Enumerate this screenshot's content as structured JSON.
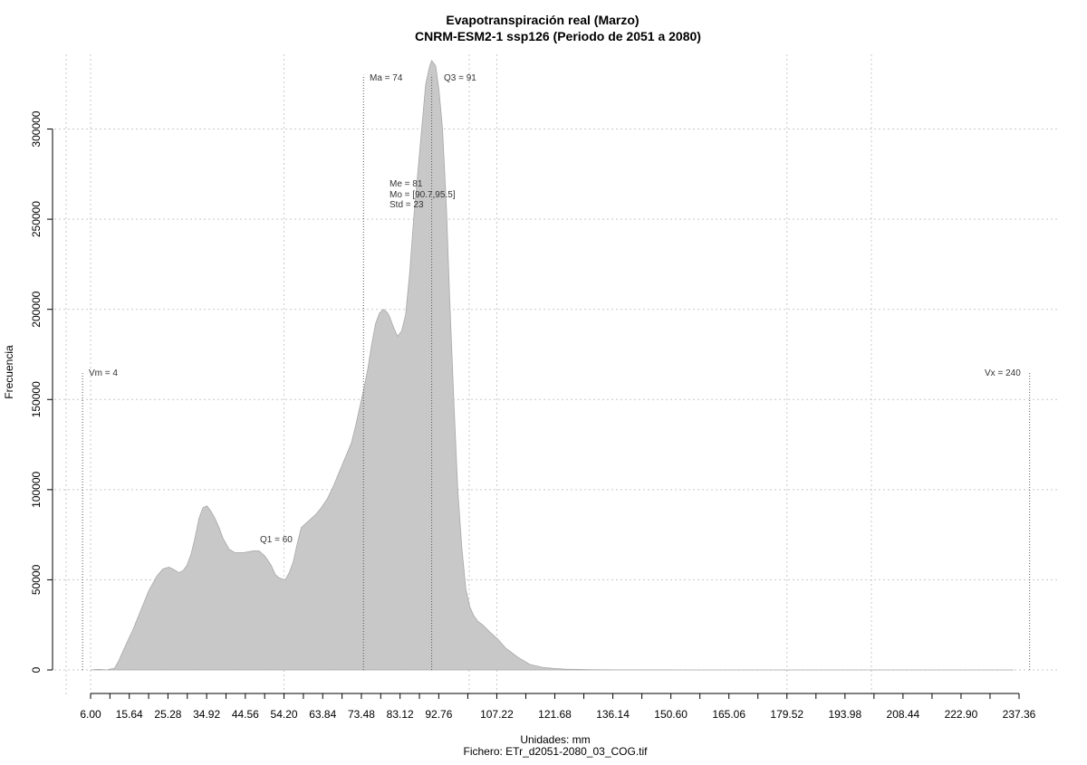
{
  "chart_data": {
    "type": "area",
    "title": "Evapotranspiración real (Marzo)",
    "subtitle": "CNRM-ESM2-1 ssp126 (Periodo de 2051 a 2080)",
    "xlabel": "Unidades: mm",
    "ylabel": "Frecuencia",
    "caption": "Fichero: ETr_d2051-2080_03_COG.tif",
    "xlim": [
      6.0,
      237.36
    ],
    "ylim": [
      0,
      335000
    ],
    "grid": true,
    "fill_color": "#c8c8c8",
    "x_ticks": [
      "6.00",
      "15.64",
      "25.28",
      "34.92",
      "44.56",
      "54.20",
      "63.84",
      "73.48",
      "83.12",
      "92.76",
      "107.22",
      "121.68",
      "136.14",
      "150.60",
      "165.06",
      "179.52",
      "193.98",
      "208.44",
      "222.90",
      "237.36"
    ],
    "y_ticks": [
      "0",
      "50000",
      "100000",
      "150000",
      "200000",
      "250000",
      "300000"
    ],
    "x": [
      6.0,
      7.0,
      8.0,
      9.0,
      10.0,
      11.0,
      12.0,
      13.0,
      14.0,
      15.0,
      16.5,
      18.5,
      20.5,
      22.5,
      24.0,
      25.5,
      26.5,
      28.0,
      29.0,
      30.0,
      31.0,
      32.0,
      33.0,
      34.0,
      35.0,
      36.0,
      37.0,
      38.0,
      39.0,
      40.5,
      42.0,
      44.0,
      46.5,
      48.0,
      49.5,
      51.0,
      52.0,
      53.0,
      54.5,
      55.5,
      56.5,
      57.5,
      58.5,
      60.0,
      61.0,
      62.0,
      63.5,
      65.0,
      66.5,
      68.0,
      69.5,
      71.0,
      72.0,
      73.0,
      74.0,
      75.0,
      76.0,
      77.0,
      78.0,
      79.0,
      80.0,
      80.5,
      81.5,
      82.5,
      83.5,
      84.5,
      85.5,
      86.5,
      87.5,
      88.5,
      89.5,
      90.5,
      91.0,
      92.0,
      92.8,
      93.7,
      94.7,
      95.5,
      96.5,
      97.5,
      98.5,
      99.5,
      100.5,
      101.5,
      102.5,
      103.7,
      105.5,
      107.5,
      109.5,
      112.5,
      115.5,
      118.5,
      121.5,
      124.5,
      127.5,
      130.0,
      133.0,
      137.0,
      145.0,
      160.0,
      180.0,
      200.0,
      220.0,
      230.0,
      236.0
    ],
    "y": [
      0,
      200,
      300,
      200,
      0,
      500,
      1000,
      5000,
      10000,
      15000,
      22000,
      33000,
      44000,
      52000,
      56000,
      57000,
      56000,
      54000,
      55000,
      58000,
      64000,
      73000,
      84000,
      90000,
      91000,
      88000,
      84000,
      79000,
      73000,
      67000,
      65000,
      65000,
      66000,
      66000,
      63000,
      58000,
      53000,
      51000,
      50000,
      54000,
      60000,
      70000,
      79000,
      82000,
      84000,
      86000,
      90000,
      95000,
      102000,
      110000,
      118000,
      126000,
      135000,
      145000,
      155000,
      166000,
      180000,
      192000,
      198000,
      200000,
      198000,
      196000,
      190000,
      185000,
      188000,
      197000,
      220000,
      250000,
      275000,
      300000,
      325000,
      335000,
      338000,
      335000,
      322000,
      300000,
      255000,
      205000,
      150000,
      100000,
      68000,
      45000,
      35000,
      30000,
      27000,
      25000,
      21000,
      17000,
      12000,
      7000,
      3000,
      1500,
      800,
      400,
      300,
      200,
      100,
      50,
      20,
      0,
      0,
      0,
      0,
      0,
      0
    ],
    "vlines": [
      {
        "x": 4,
        "top": 165000
      },
      {
        "x": 60,
        "top": 0
      },
      {
        "x": 74,
        "top": 330000
      },
      {
        "x": 91,
        "top": 330000
      },
      {
        "x": 240,
        "top": 165000
      }
    ],
    "annotations": {
      "vm": "Vm = 4",
      "q1": "Q1 = 60",
      "ma": "Ma = 74",
      "q3": "Q3 = 91",
      "me": "Me = 81",
      "mo": "Mo = [90.7,95.5]",
      "std": "Std = 23",
      "vx": "Vx = 240"
    }
  }
}
